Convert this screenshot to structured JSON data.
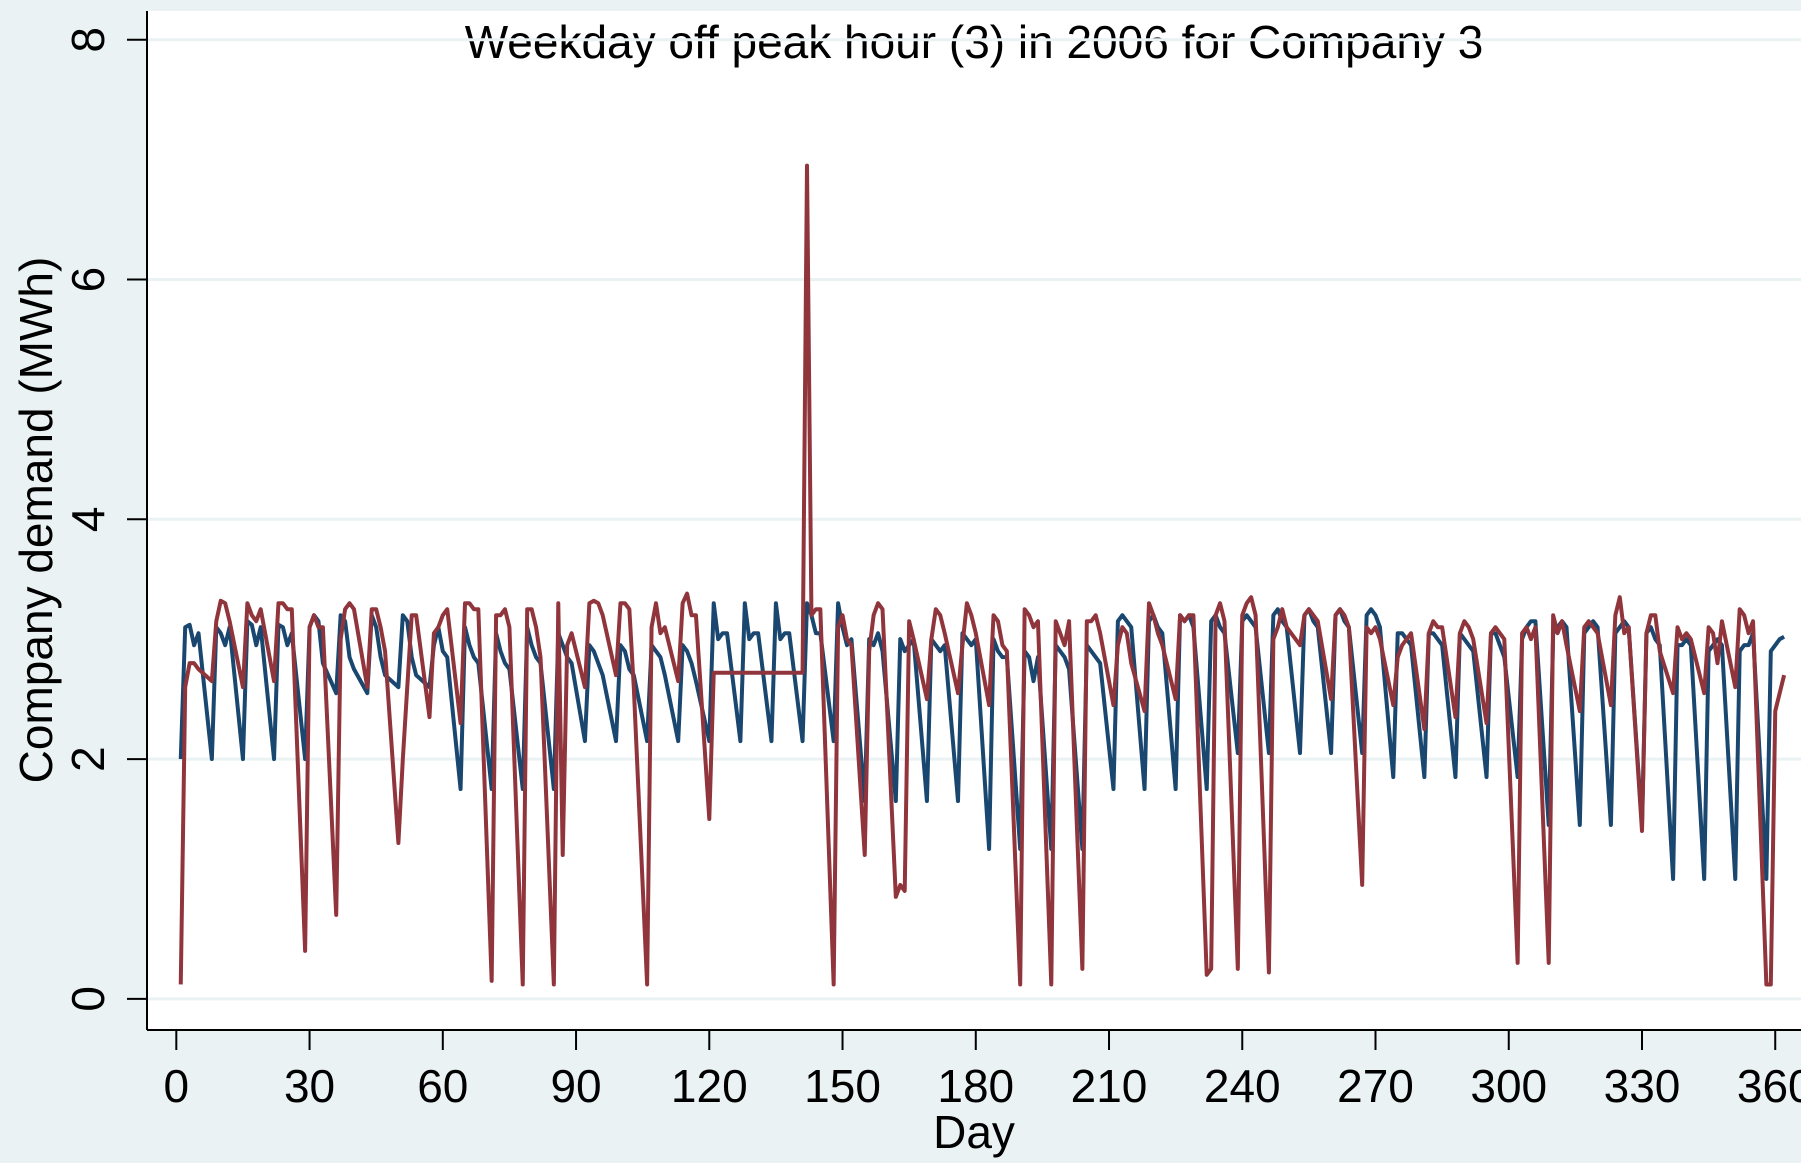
{
  "chart_data": {
    "type": "line",
    "title": "Weekday off peak hour (3) in 2006 for Company 3",
    "x_label": "Day",
    "y_label": "Company demand (MWh)",
    "xlim": [
      -6.6,
      365.8
    ],
    "ylim": [
      -0.26,
      8.24
    ],
    "xticks": [
      0,
      30,
      60,
      90,
      120,
      150,
      180,
      210,
      240,
      270,
      300,
      330,
      360
    ],
    "yticks": [
      0,
      2,
      4,
      6,
      8
    ],
    "grid": true,
    "x": [
      1,
      2,
      3,
      4,
      5,
      8,
      9,
      10,
      11,
      12,
      15,
      16,
      17,
      18,
      19,
      22,
      23,
      24,
      25,
      26,
      29,
      30,
      31,
      32,
      33,
      36,
      37,
      38,
      39,
      40,
      43,
      44,
      45,
      46,
      47,
      50,
      51,
      52,
      53,
      54,
      57,
      58,
      59,
      60,
      61,
      64,
      65,
      66,
      67,
      68,
      71,
      72,
      73,
      74,
      75,
      78,
      79,
      80,
      81,
      82,
      85,
      86,
      87,
      88,
      89,
      92,
      93,
      94,
      95,
      96,
      99,
      100,
      101,
      102,
      103,
      106,
      107,
      108,
      109,
      110,
      113,
      114,
      115,
      116,
      117,
      120,
      121,
      122,
      123,
      124,
      127,
      128,
      129,
      130,
      131,
      134,
      135,
      136,
      137,
      138,
      141,
      142,
      143,
      144,
      145,
      148,
      149,
      150,
      151,
      152,
      155,
      156,
      157,
      158,
      159,
      162,
      163,
      164,
      165,
      166,
      169,
      170,
      171,
      172,
      173,
      176,
      177,
      178,
      179,
      180,
      183,
      184,
      185,
      186,
      187,
      190,
      191,
      192,
      193,
      194,
      197,
      198,
      199,
      200,
      201,
      204,
      205,
      206,
      207,
      208,
      211,
      212,
      213,
      214,
      215,
      218,
      219,
      220,
      221,
      222,
      225,
      226,
      227,
      228,
      229,
      232,
      233,
      234,
      235,
      236,
      239,
      240,
      241,
      242,
      243,
      246,
      247,
      248,
      249,
      250,
      253,
      254,
      255,
      256,
      257,
      260,
      261,
      262,
      263,
      264,
      267,
      268,
      269,
      270,
      271,
      274,
      275,
      276,
      277,
      278,
      281,
      282,
      283,
      284,
      285,
      288,
      289,
      290,
      291,
      292,
      295,
      296,
      297,
      298,
      299,
      302,
      303,
      304,
      305,
      306,
      309,
      310,
      311,
      312,
      313,
      316,
      317,
      318,
      319,
      320,
      323,
      324,
      325,
      326,
      327,
      330,
      331,
      332,
      333,
      334,
      337,
      338,
      339,
      340,
      341,
      344,
      345,
      346,
      347,
      348,
      351,
      352,
      353,
      354,
      355,
      358,
      359,
      360,
      361,
      362
    ],
    "series": [
      {
        "color": "#1a476f",
        "values": [
          2.0,
          3.1,
          3.12,
          2.95,
          3.05,
          2.0,
          3.1,
          3.05,
          2.95,
          3.1,
          2.0,
          3.15,
          3.12,
          2.95,
          3.1,
          2.0,
          3.12,
          3.1,
          2.95,
          3.05,
          2.0,
          3.1,
          3.2,
          3.15,
          2.8,
          2.55,
          3.2,
          3.15,
          2.85,
          2.75,
          2.55,
          3.2,
          3.1,
          2.85,
          2.7,
          2.6,
          3.2,
          3.15,
          2.85,
          2.7,
          2.6,
          2.95,
          3.1,
          2.9,
          2.85,
          1.75,
          3.1,
          2.95,
          2.85,
          2.8,
          1.75,
          3.05,
          2.9,
          2.8,
          2.75,
          1.75,
          3.1,
          2.95,
          2.85,
          2.8,
          1.75,
          3.05,
          2.95,
          2.85,
          2.8,
          2.15,
          2.95,
          2.9,
          2.8,
          2.7,
          2.15,
          2.95,
          2.9,
          2.75,
          2.7,
          2.15,
          2.95,
          2.9,
          2.85,
          2.7,
          2.15,
          2.95,
          2.9,
          2.8,
          2.65,
          2.15,
          3.3,
          3.0,
          3.05,
          3.05,
          2.15,
          3.3,
          3.0,
          3.05,
          3.05,
          2.15,
          3.3,
          3.0,
          3.05,
          3.05,
          2.15,
          3.3,
          3.2,
          3.05,
          3.05,
          2.15,
          3.3,
          3.1,
          2.95,
          3.0,
          1.65,
          3.0,
          2.95,
          3.05,
          2.9,
          1.65,
          3.0,
          2.9,
          2.95,
          3.0,
          1.65,
          3.0,
          2.95,
          2.9,
          2.95,
          1.65,
          3.05,
          3.0,
          2.95,
          3.0,
          1.25,
          3.0,
          2.9,
          2.85,
          2.85,
          1.25,
          2.9,
          2.85,
          2.65,
          2.85,
          1.25,
          2.95,
          2.9,
          2.85,
          2.75,
          1.25,
          2.95,
          2.9,
          2.85,
          2.8,
          1.75,
          3.15,
          3.2,
          3.15,
          3.1,
          1.75,
          3.15,
          3.2,
          3.1,
          3.05,
          1.75,
          3.2,
          3.15,
          3.2,
          3.1,
          1.75,
          3.15,
          3.2,
          3.1,
          3.05,
          2.05,
          3.15,
          3.2,
          3.15,
          3.1,
          2.05,
          3.2,
          3.25,
          3.15,
          3.1,
          2.05,
          3.2,
          3.25,
          3.15,
          3.1,
          2.05,
          3.2,
          3.25,
          3.15,
          3.1,
          2.05,
          3.2,
          3.25,
          3.2,
          3.1,
          1.85,
          3.05,
          3.05,
          3.0,
          2.95,
          1.85,
          3.05,
          3.05,
          3.0,
          2.95,
          1.85,
          3.05,
          3.0,
          2.95,
          2.9,
          1.85,
          3.05,
          3.05,
          2.95,
          2.85,
          1.85,
          3.0,
          3.1,
          3.15,
          3.15,
          1.45,
          3.05,
          3.1,
          3.15,
          3.1,
          1.45,
          3.05,
          3.1,
          3.15,
          3.1,
          1.45,
          3.05,
          3.1,
          3.15,
          3.1,
          1.45,
          3.05,
          3.1,
          3.0,
          2.95,
          1.0,
          2.95,
          2.95,
          3.0,
          2.95,
          1.0,
          2.9,
          2.95,
          3.0,
          2.95,
          1.0,
          2.9,
          2.95,
          2.95,
          3.05,
          1.0,
          2.9,
          2.95,
          3.0,
          3.02
        ]
      },
      {
        "color": "#90353b",
        "values": [
          0.12,
          2.6,
          2.8,
          2.8,
          2.75,
          2.65,
          3.15,
          3.32,
          3.3,
          3.15,
          2.6,
          3.3,
          3.2,
          3.15,
          3.25,
          2.65,
          3.3,
          3.3,
          3.25,
          3.25,
          0.4,
          3.1,
          3.2,
          3.1,
          3.1,
          0.7,
          3.0,
          3.25,
          3.3,
          3.25,
          2.6,
          3.25,
          3.25,
          3.1,
          2.9,
          1.3,
          2.0,
          2.6,
          3.2,
          3.2,
          2.35,
          3.05,
          3.1,
          3.2,
          3.25,
          2.3,
          3.3,
          3.3,
          3.25,
          3.25,
          0.15,
          3.2,
          3.2,
          3.25,
          3.1,
          0.12,
          3.25,
          3.25,
          3.1,
          2.85,
          0.12,
          3.3,
          1.2,
          2.95,
          3.05,
          2.6,
          3.3,
          3.32,
          3.3,
          3.2,
          2.7,
          3.3,
          3.3,
          3.25,
          2.6,
          0.12,
          3.1,
          3.3,
          3.05,
          3.1,
          2.65,
          3.3,
          3.38,
          3.2,
          3.2,
          1.5,
          2.72,
          2.72,
          2.72,
          2.72,
          2.72,
          2.72,
          2.72,
          2.72,
          2.72,
          2.72,
          2.72,
          2.72,
          2.72,
          2.72,
          2.72,
          6.95,
          3.2,
          3.25,
          3.25,
          0.12,
          3.1,
          3.2,
          3.0,
          2.95,
          1.2,
          2.9,
          3.2,
          3.3,
          3.25,
          0.85,
          0.95,
          0.9,
          3.15,
          3.0,
          2.5,
          3.0,
          3.25,
          3.2,
          3.05,
          2.55,
          2.95,
          3.3,
          3.2,
          3.05,
          2.45,
          3.2,
          3.15,
          2.95,
          2.9,
          0.12,
          3.25,
          3.2,
          3.1,
          3.15,
          0.12,
          3.15,
          3.05,
          2.95,
          3.15,
          0.25,
          3.15,
          3.15,
          3.2,
          3.05,
          2.45,
          2.95,
          3.1,
          3.05,
          2.8,
          2.4,
          3.3,
          3.2,
          3.05,
          2.95,
          2.5,
          3.2,
          3.15,
          3.2,
          3.2,
          0.2,
          0.25,
          3.2,
          3.3,
          3.15,
          0.25,
          3.2,
          3.3,
          3.35,
          3.2,
          0.22,
          3.0,
          3.1,
          3.25,
          3.1,
          2.95,
          3.2,
          3.25,
          3.2,
          3.15,
          2.5,
          3.2,
          3.25,
          3.2,
          3.1,
          0.95,
          3.1,
          3.05,
          3.1,
          3.0,
          2.45,
          2.85,
          2.95,
          3.0,
          3.05,
          2.25,
          3.05,
          3.15,
          3.1,
          3.1,
          2.35,
          3.05,
          3.15,
          3.1,
          3.0,
          2.3,
          3.05,
          3.1,
          3.05,
          3.0,
          0.3,
          3.05,
          3.1,
          3.0,
          3.1,
          0.3,
          3.2,
          3.05,
          3.15,
          2.95,
          2.4,
          3.1,
          3.15,
          3.1,
          3.05,
          2.45,
          3.2,
          3.35,
          3.05,
          3.1,
          1.4,
          3.05,
          3.2,
          3.2,
          2.9,
          2.55,
          3.1,
          3.0,
          3.05,
          3.0,
          2.55,
          3.1,
          3.05,
          2.8,
          3.15,
          2.6,
          3.25,
          3.2,
          3.05,
          3.15,
          0.12,
          0.12,
          2.4,
          2.55,
          2.7
        ]
      }
    ]
  }
}
